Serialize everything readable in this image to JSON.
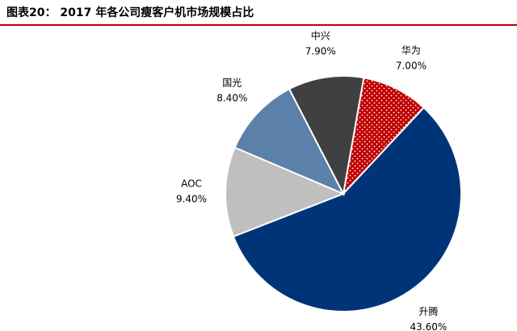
{
  "chart_data": {
    "type": "pie",
    "title": "图表20： 2017 年各公司瘦客户机市场规模占比",
    "categories": [
      "华为",
      "升腾",
      "AOC",
      "国光",
      "中兴"
    ],
    "values": [
      7.0,
      43.6,
      9.4,
      8.4,
      7.9
    ],
    "value_labels": [
      "7.00%",
      "43.60%",
      "9.40%",
      "8.40%",
      "7.90%"
    ],
    "colors": [
      "#c00000",
      "#003478",
      "#bfbfbf",
      "#5b80aa",
      "#404040"
    ]
  }
}
